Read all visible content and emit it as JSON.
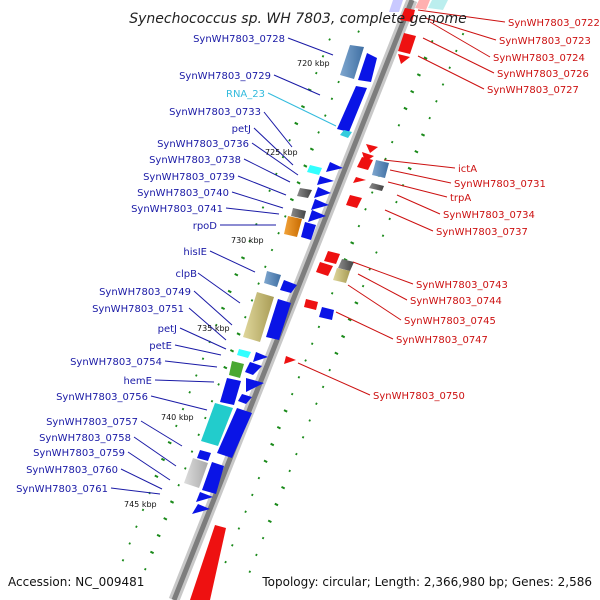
{
  "title": "Synechococcus sp. WH 7803, complete genome",
  "footer": {
    "accession": "Accession: NC_009481",
    "summary": "Topology: circular; Length: 2,366,980 bp; Genes: 2,586"
  },
  "ticks": [
    "720 kbp",
    "725 kbp",
    "730 kbp",
    "735 kbp",
    "740 kbp",
    "745 kbp"
  ],
  "left_labels": [
    "SynWH7803_0728",
    "SynWH7803_0729",
    "RNA_23",
    "SynWH7803_0733",
    "petJ",
    "SynWH7803_0736",
    "SynWH7803_0738",
    "SynWH7803_0739",
    "SynWH7803_0740",
    "SynWH7803_0741",
    "rpoD",
    "hisIE",
    "clpB",
    "SynWH7803_0749",
    "SynWH7803_0751",
    "petJ",
    "petE",
    "SynWH7803_0754",
    "hemE",
    "SynWH7803_0756",
    "SynWH7803_0757",
    "SynWH7803_0758",
    "SynWH7803_0759",
    "SynWH7803_0760",
    "SynWH7803_0761"
  ],
  "right_labels": [
    "SynWH7803_0722",
    "SynWH7803_0723",
    "SynWH7803_0724",
    "SynWH7803_0726",
    "SynWH7803_0727",
    "ictA",
    "SynWH7803_0731",
    "trpA",
    "SynWH7803_0734",
    "SynWH7803_0737",
    "SynWH7803_0743",
    "SynWH7803_0744",
    "SynWH7803_0745",
    "SynWH7803_0747",
    "SynWH7803_0750"
  ],
  "colors": {
    "forward_cds": "#0a14e6",
    "reverse_cds": "#ee1111",
    "rna": "#33ccdd",
    "backbone": "#8c8c8c",
    "gc_ticks": "#1a8a1a"
  }
}
